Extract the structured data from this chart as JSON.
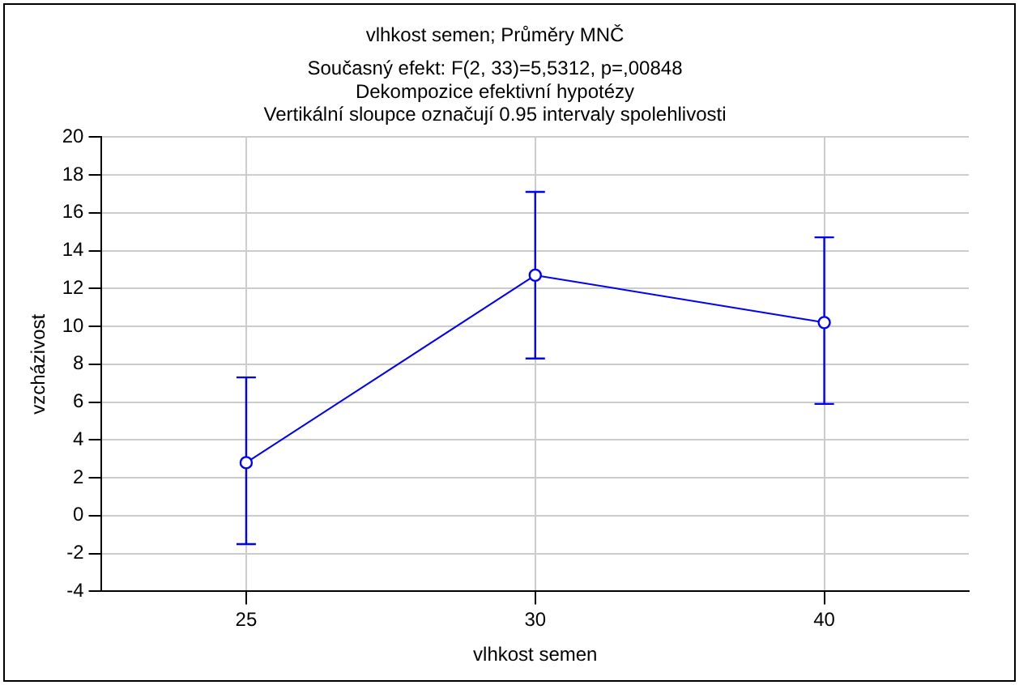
{
  "chart_data": {
    "type": "line",
    "title": "vlhkost semen; Průměry MNČ",
    "subtitle": "Současný efekt: F(2, 33)=5,5312, p=,00848",
    "annotations": [
      "Dekompozice efektivní hypotézy",
      "Vertikální sloupce označují 0.95 intervaly spolehlivosti"
    ],
    "xlabel": "vlhkost semen",
    "ylabel": "vzcházivost",
    "categories": [
      "25",
      "30",
      "40"
    ],
    "series": [
      {
        "color": "#0000ff",
        "values": [
          2.8,
          12.7,
          10.2
        ],
        "errors": [
          [
            -1.5,
            7.3
          ],
          [
            8.3,
            17.1
          ],
          [
            5.9,
            14.7
          ]
        ]
      }
    ],
    "ylim": [
      -4,
      20
    ],
    "yticks": [
      -4,
      -2,
      0,
      2,
      4,
      6,
      8,
      10,
      12,
      14,
      16,
      18,
      20
    ],
    "grid": true,
    "legend": false,
    "marker": "circle",
    "line_style": "solid"
  }
}
